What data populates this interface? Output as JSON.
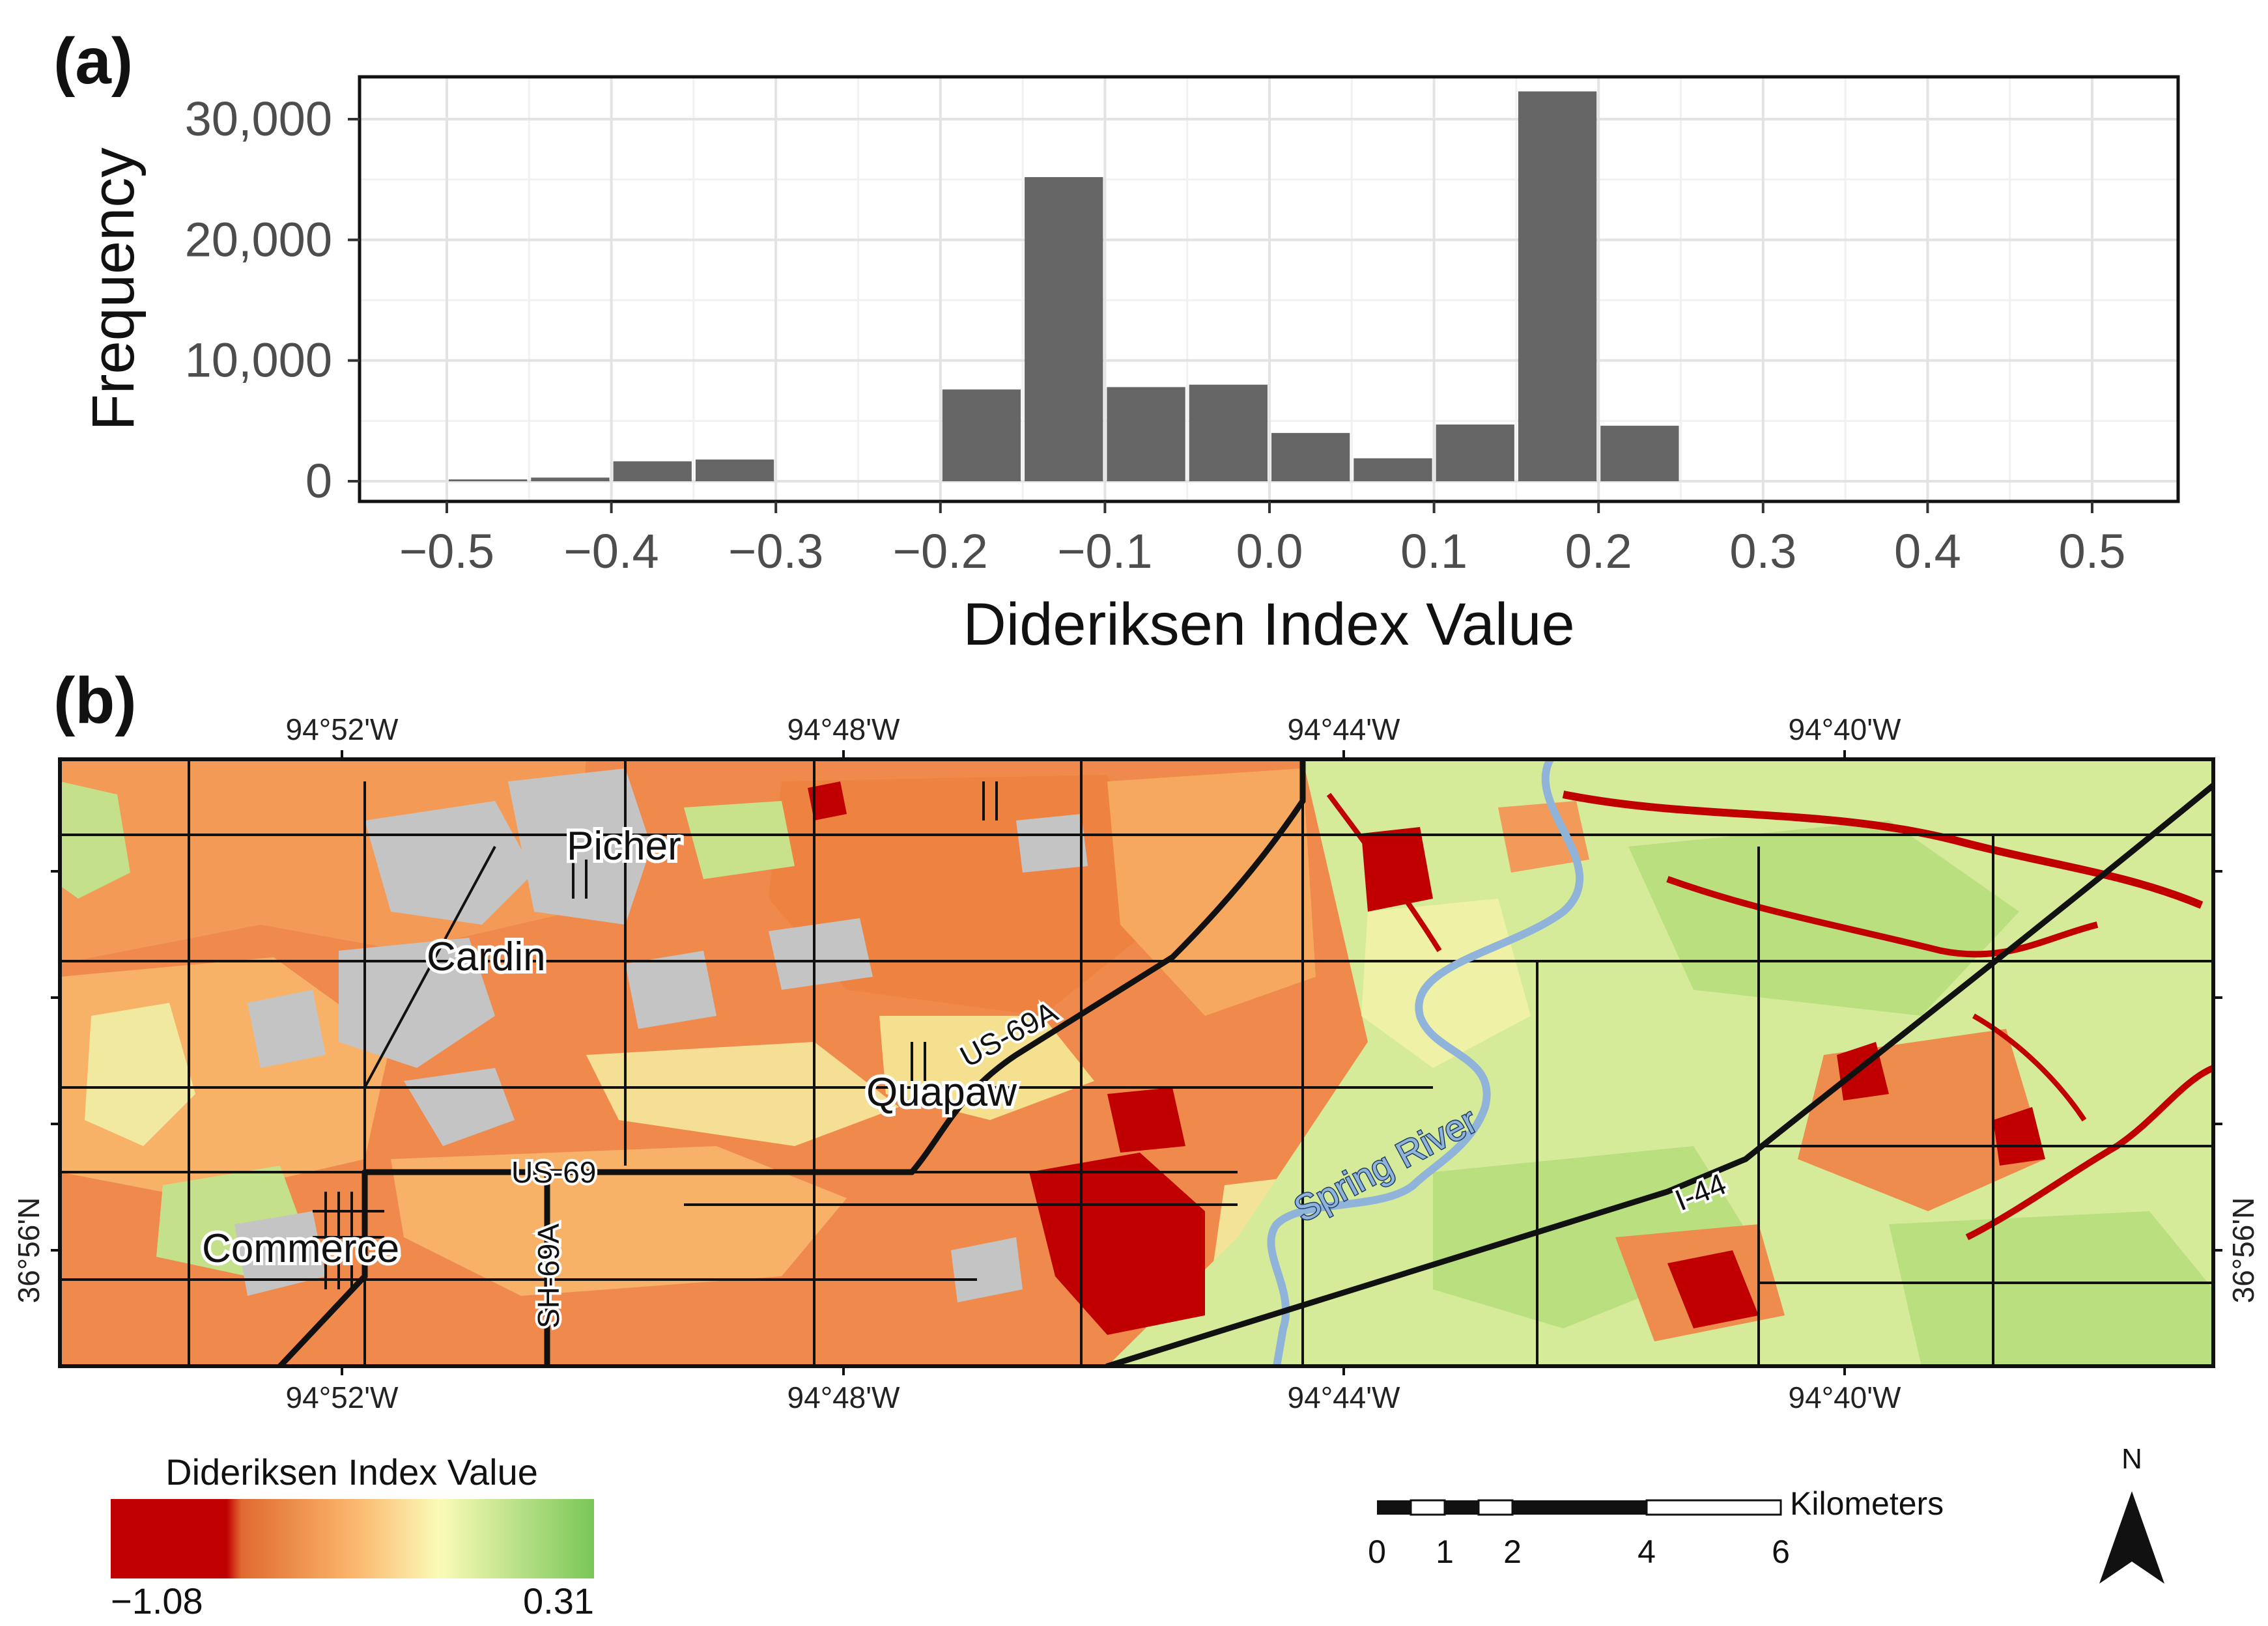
{
  "panel_a": {
    "label": "(a)",
    "chart_data": {
      "type": "bar",
      "title": "",
      "xlabel": "Dideriksen Index Value",
      "ylabel": "Frequency",
      "xlim": [
        -0.5,
        0.5
      ],
      "ylim": [
        0,
        31000
      ],
      "grid": true,
      "bin_width": 0.05,
      "x": [
        -0.475,
        -0.425,
        -0.375,
        -0.325,
        -0.275,
        -0.225,
        -0.175,
        -0.125,
        -0.075,
        -0.025,
        0.025,
        0.075,
        0.125,
        0.175,
        0.225,
        0.275,
        0.325,
        0.375,
        0.425,
        0.475
      ],
      "values": [
        150,
        300,
        1650,
        1800,
        0,
        0,
        7600,
        25200,
        7800,
        8000,
        4000,
        1900,
        4700,
        32300,
        4600,
        0,
        0,
        0,
        0,
        0
      ],
      "x_ticks": [
        "−0.5",
        "−0.4",
        "−0.3",
        "−0.2",
        "−0.1",
        "0.0",
        "0.1",
        "0.2",
        "0.3",
        "0.4",
        "0.5"
      ],
      "x_tick_values": [
        -0.5,
        -0.4,
        -0.3,
        -0.2,
        -0.1,
        0.0,
        0.1,
        0.2,
        0.3,
        0.4,
        0.5
      ],
      "y_ticks": [
        "0",
        "10,000",
        "20,000",
        "30,000"
      ],
      "y_tick_values": [
        0,
        10000,
        20000,
        30000
      ],
      "bar_color": "#666666"
    }
  },
  "panel_b": {
    "label": "(b)",
    "top_longitudes": [
      "94°52'W",
      "94°48'W",
      "94°44'W",
      "94°40'W"
    ],
    "bottom_longitudes": [
      "94°52'W",
      "94°48'W",
      "94°44'W",
      "94°40'W"
    ],
    "latitude_left": "36°56'N",
    "latitude_right": "36°56'N",
    "places": {
      "picher": "Picher",
      "cardin": "Cardin",
      "quapaw": "Quapaw",
      "commerce": "Commerce"
    },
    "roads": {
      "us69a": "US-69A",
      "us69": "US-69",
      "sh69a": "SH-69A",
      "i44": "I-44"
    },
    "river": "Spring River",
    "colors": {
      "dark_red": "#c00000",
      "orange": "#ef8a4c",
      "light_orange": "#f7b267",
      "pale_yellow": "#f2f0a8",
      "light_green": "#b9df7e",
      "gray": "#c4c4c4",
      "river": "#8fb3d9"
    }
  },
  "legend": {
    "title": "Dideriksen Index Value",
    "min": "−1.08",
    "max": "0.31",
    "stops": [
      "#c00000",
      "#c00000",
      "#e87a3e",
      "#fbb56b",
      "#fbfbb8",
      "#79c757"
    ]
  },
  "scalebar": {
    "unit": "Kilometers",
    "ticks": [
      "0",
      "1",
      "2",
      "4",
      "6"
    ]
  },
  "north_arrow": {
    "label": "N"
  }
}
